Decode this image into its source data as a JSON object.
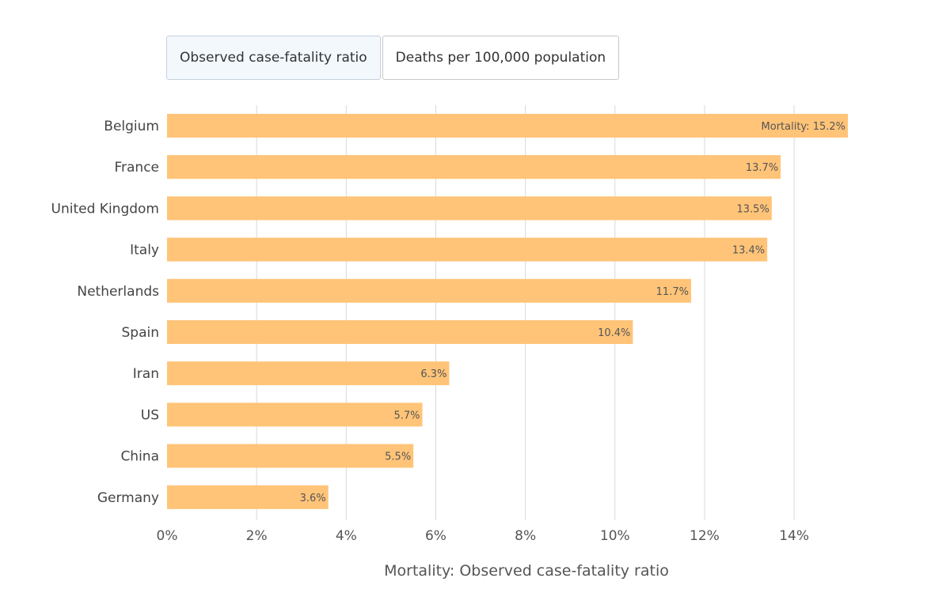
{
  "toggles": [
    {
      "label": "Observed case-fatality ratio",
      "active": true
    },
    {
      "label": "Deaths per 100,000 population",
      "active": false
    }
  ],
  "colors": {
    "bar": "#ffc478",
    "grid": "#d9d9d9",
    "text": "#444444"
  },
  "chart_data": {
    "type": "bar",
    "orientation": "horizontal",
    "categories": [
      "Belgium",
      "France",
      "United Kingdom",
      "Italy",
      "Netherlands",
      "Spain",
      "Iran",
      "US",
      "China",
      "Germany"
    ],
    "values": [
      15.2,
      13.7,
      13.5,
      13.4,
      11.7,
      10.4,
      6.3,
      5.7,
      5.5,
      3.6
    ],
    "data_labels": [
      "Mortality: 15.2%",
      "13.7%",
      "13.5%",
      "13.4%",
      "11.7%",
      "10.4%",
      "6.3%",
      "5.7%",
      "5.5%",
      "3.6%"
    ],
    "xlabel": "Mortality: Observed case-fatality ratio",
    "ylabel": "",
    "xlim": [
      0,
      15.2
    ],
    "xticks": [
      0,
      2,
      4,
      6,
      8,
      10,
      12,
      14
    ],
    "xtick_labels": [
      "0%",
      "2%",
      "4%",
      "6%",
      "8%",
      "10%",
      "12%",
      "14%"
    ],
    "grid": true
  }
}
